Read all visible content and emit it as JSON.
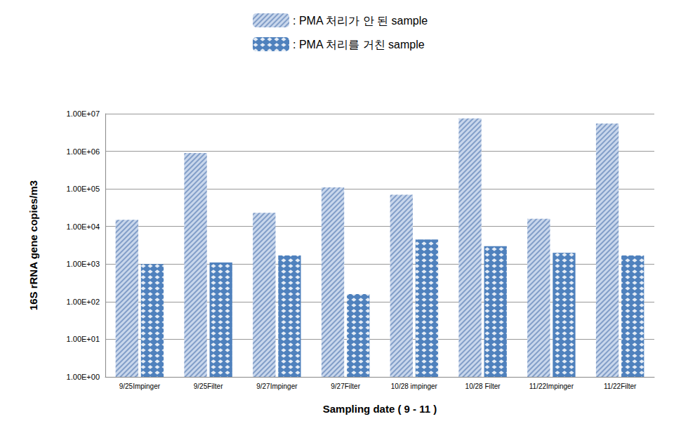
{
  "chart_data": {
    "type": "bar",
    "x_label": "Sampling date ( 9 - 11 )",
    "y_label": "16S rRNA gene copies/m3",
    "categories": [
      "9/25Impinger",
      "9/25Filter",
      "9/27Impinger",
      "9/27Filter",
      "10/28 impinger",
      "10/28 Filter",
      "11/22Impinger",
      "11/22Filter"
    ],
    "series": [
      {
        "name": ": PMA 처리가 안 된 sample",
        "color": "#c9d7ec",
        "values": [
          15000,
          900000,
          23000,
          110000,
          70000,
          7500000,
          16000,
          5500000
        ]
      },
      {
        "name": ": PMA 처리를 거친 sample",
        "color": "#4f81bd",
        "values": [
          1000,
          1100,
          1700,
          160,
          4500,
          3000,
          2000,
          1700
        ]
      }
    ],
    "ylim": [
      1,
      10000000
    ],
    "yticks": [
      {
        "value": 1,
        "label": "1.00E+00"
      },
      {
        "value": 10,
        "label": "1.00E+01"
      },
      {
        "value": 100,
        "label": "1.00E+02"
      },
      {
        "value": 1000,
        "label": "1.00E+03"
      },
      {
        "value": 10000,
        "label": "1.00E+04"
      },
      {
        "value": 100000,
        "label": "1.00E+05"
      },
      {
        "value": 1000000,
        "label": "1.00E+06"
      },
      {
        "value": 10000000,
        "label": "1.00E+07"
      }
    ],
    "log": "y",
    "grid": true,
    "legend": "top"
  }
}
